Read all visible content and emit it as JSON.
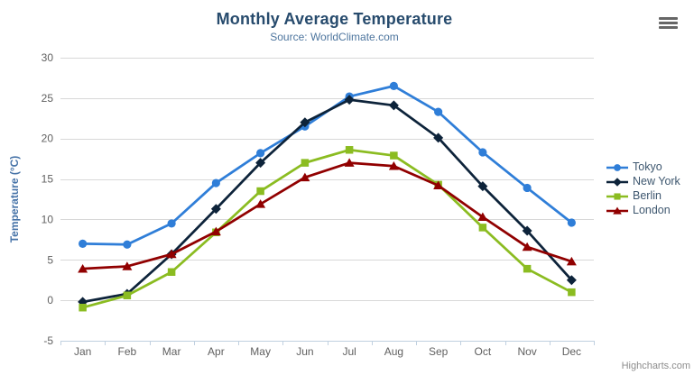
{
  "chart_data": {
    "type": "line",
    "title": "Monthly Average Temperature",
    "subtitle": "Source: WorldClimate.com",
    "xlabel": "",
    "ylabel": "Temperature (°C)",
    "ylim": [
      -5,
      30
    ],
    "yticks": [
      30,
      25,
      20,
      15,
      10,
      5,
      0,
      -5
    ],
    "grid": true,
    "legend_position": "right",
    "categories": [
      "Jan",
      "Feb",
      "Mar",
      "Apr",
      "May",
      "Jun",
      "Jul",
      "Aug",
      "Sep",
      "Oct",
      "Nov",
      "Dec"
    ],
    "series": [
      {
        "name": "Tokyo",
        "color": "#2F7ED8",
        "marker": "circle",
        "values": [
          7.0,
          6.9,
          9.5,
          14.5,
          18.2,
          21.5,
          25.2,
          26.5,
          23.3,
          18.3,
          13.9,
          9.6
        ]
      },
      {
        "name": "New York",
        "color": "#0D233A",
        "marker": "diamond",
        "values": [
          -0.2,
          0.8,
          5.7,
          11.3,
          17.0,
          22.0,
          24.8,
          24.1,
          20.1,
          14.1,
          8.6,
          2.5
        ]
      },
      {
        "name": "Berlin",
        "color": "#8BBC21",
        "marker": "square",
        "values": [
          -0.9,
          0.6,
          3.5,
          8.4,
          13.5,
          17.0,
          18.6,
          17.9,
          14.3,
          9.0,
          3.9,
          1.0
        ]
      },
      {
        "name": "London",
        "color": "#910000",
        "marker": "triangle",
        "values": [
          3.9,
          4.2,
          5.7,
          8.5,
          11.9,
          15.2,
          17.0,
          16.6,
          14.2,
          10.3,
          6.6,
          4.8
        ]
      }
    ],
    "colors": {
      "grid_line": "#D8D8D8",
      "axis_line": "#C0D0E0",
      "tick_label": "#606060"
    }
  },
  "export_menu": {
    "icon": "hamburger-menu-icon"
  },
  "credits": {
    "text": "Highcharts.com"
  }
}
